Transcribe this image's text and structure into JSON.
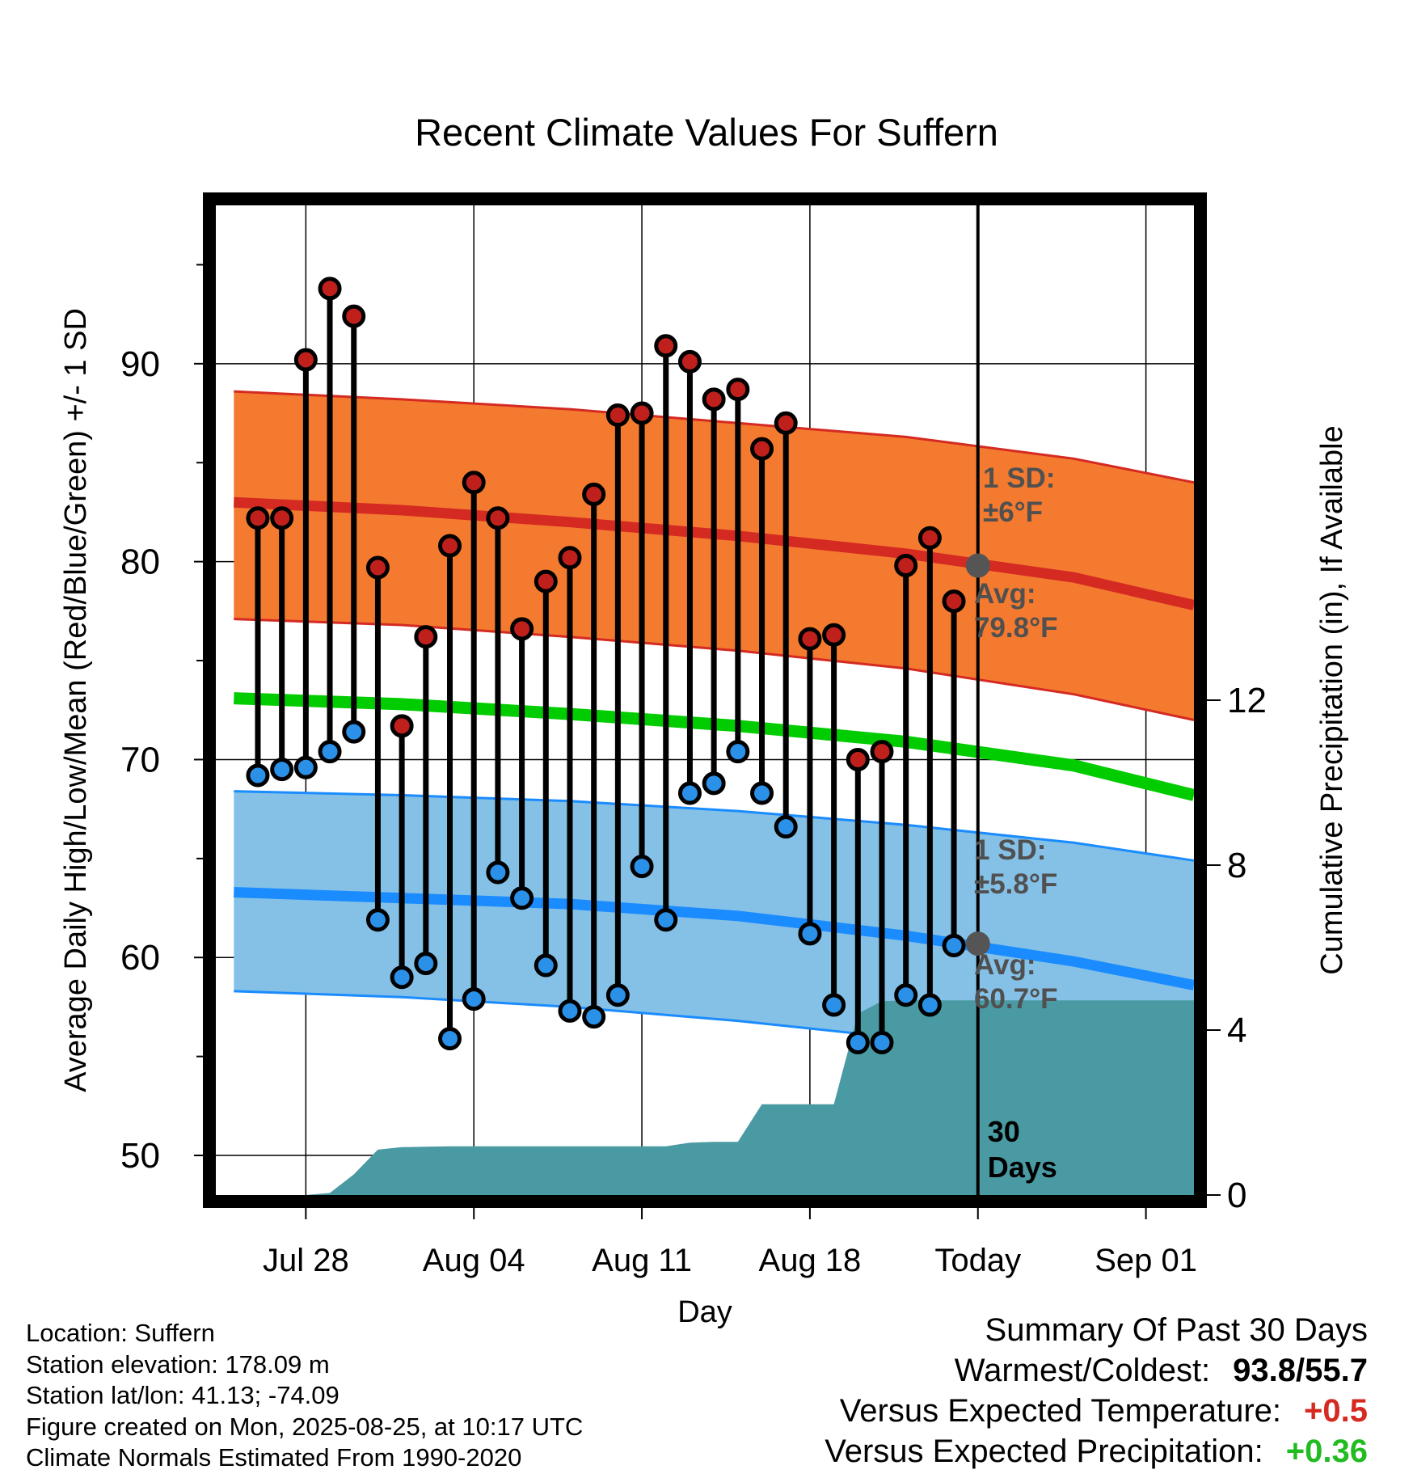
{
  "chart_data": {
    "type": "line",
    "title": "Recent Climate Values For Suffern",
    "xlabel": "Day",
    "ylabel_left": "Average Daily High/Low/Mean (Red/Blue/Green) +/- 1 SD",
    "ylabel_right": "Cumulative Precipitation (in), If Available",
    "x_tick_labels": [
      "Jul 28",
      "Aug 04",
      "Aug 11",
      "Aug 18",
      "Today",
      "Sep 01"
    ],
    "x_tick_dates": [
      "2025-07-28",
      "2025-08-04",
      "2025-08-11",
      "2025-08-18",
      "2025-08-25",
      "2025-09-01"
    ],
    "xlim": [
      "2025-07-24T18:00",
      "2025-09-03T12:00"
    ],
    "ylim_left": [
      48,
      98
    ],
    "y_ticks_left": [
      50,
      60,
      70,
      80,
      90
    ],
    "ylim_right": [
      0,
      24
    ],
    "y_ticks_right": [
      0,
      4,
      8,
      12
    ],
    "grid": true,
    "today_marker": {
      "date": "2025-08-25",
      "label": "30 Days"
    },
    "colors": {
      "high_mean": "#d42a22",
      "high_band": "#f47a30",
      "low_mean": "#1a8cff",
      "low_band": "#85c1e6",
      "overall_mean": "#00cc00",
      "precip": "#4a9aa4",
      "high_dot": "#c0201c",
      "low_dot": "#2a90e8",
      "avg_marker": "#555555",
      "annotation_text": "#505050"
    },
    "annotations": {
      "high_sd": [
        "1 SD:",
        "±6°F"
      ],
      "high_avg": [
        "Avg:",
        "79.8°F"
      ],
      "low_sd": [
        "1 SD:",
        "±5.8°F"
      ],
      "low_avg": [
        "Avg:",
        "60.7°F"
      ]
    },
    "normals": {
      "dates": [
        "2025-07-25",
        "2025-08-01",
        "2025-08-08",
        "2025-08-15",
        "2025-08-22",
        "2025-08-29",
        "2025-09-03"
      ],
      "high_mean": [
        83.0,
        82.6,
        82.0,
        81.3,
        80.4,
        79.2,
        77.8
      ],
      "high_upper": [
        88.6,
        88.2,
        87.7,
        87.0,
        86.3,
        85.2,
        84.0
      ],
      "high_lower": [
        77.1,
        76.8,
        76.2,
        75.5,
        74.6,
        73.3,
        72.0
      ],
      "overall_mean": [
        73.1,
        72.8,
        72.3,
        71.7,
        70.9,
        69.7,
        68.2
      ],
      "low_mean": [
        63.3,
        63.0,
        62.7,
        62.1,
        61.1,
        59.8,
        58.6
      ],
      "low_upper": [
        68.4,
        68.2,
        67.9,
        67.4,
        66.7,
        65.8,
        64.9
      ],
      "low_lower": [
        58.3,
        58.0,
        57.5,
        56.8,
        55.9,
        55.5,
        55.5
      ]
    },
    "series": [
      {
        "name": "High",
        "dates": [
          "2025-07-26",
          "2025-07-27",
          "2025-07-28",
          "2025-07-29",
          "2025-07-30",
          "2025-07-31",
          "2025-08-01",
          "2025-08-02",
          "2025-08-03",
          "2025-08-04",
          "2025-08-05",
          "2025-08-06",
          "2025-08-07",
          "2025-08-08",
          "2025-08-09",
          "2025-08-10",
          "2025-08-11",
          "2025-08-12",
          "2025-08-13",
          "2025-08-14",
          "2025-08-15",
          "2025-08-16",
          "2025-08-17",
          "2025-08-18",
          "2025-08-19",
          "2025-08-20",
          "2025-08-21",
          "2025-08-22",
          "2025-08-23",
          "2025-08-24"
        ],
        "values": [
          82.2,
          82.2,
          90.2,
          93.8,
          92.4,
          79.7,
          71.7,
          76.2,
          80.8,
          84.0,
          82.2,
          76.6,
          79.0,
          80.2,
          83.4,
          87.4,
          87.5,
          90.9,
          90.1,
          88.2,
          88.7,
          85.7,
          87.0,
          76.1,
          76.3,
          70.0,
          70.4,
          79.8,
          81.2,
          78.0
        ]
      },
      {
        "name": "Low",
        "dates": [
          "2025-07-26",
          "2025-07-27",
          "2025-07-28",
          "2025-07-29",
          "2025-07-30",
          "2025-07-31",
          "2025-08-01",
          "2025-08-02",
          "2025-08-03",
          "2025-08-04",
          "2025-08-05",
          "2025-08-06",
          "2025-08-07",
          "2025-08-08",
          "2025-08-09",
          "2025-08-10",
          "2025-08-11",
          "2025-08-12",
          "2025-08-13",
          "2025-08-14",
          "2025-08-15",
          "2025-08-16",
          "2025-08-17",
          "2025-08-18",
          "2025-08-19",
          "2025-08-20",
          "2025-08-21",
          "2025-08-22",
          "2025-08-23",
          "2025-08-24"
        ],
        "values": [
          69.2,
          69.5,
          69.6,
          70.4,
          71.4,
          61.9,
          59.0,
          59.7,
          55.9,
          57.9,
          64.3,
          63.0,
          59.6,
          57.3,
          57.0,
          58.1,
          64.6,
          61.9,
          68.3,
          68.8,
          70.4,
          68.3,
          66.6,
          61.2,
          57.6,
          55.7,
          55.7,
          58.1,
          57.6,
          60.6
        ]
      }
    ],
    "avg_markers": [
      {
        "date": "2025-08-25",
        "value": 79.8
      },
      {
        "date": "2025-08-25",
        "value": 60.7
      }
    ],
    "precip_cumulative": {
      "dates": [
        "2025-07-25",
        "2025-07-26",
        "2025-07-27",
        "2025-07-28",
        "2025-07-29",
        "2025-07-30",
        "2025-07-31",
        "2025-08-01",
        "2025-08-02",
        "2025-08-03",
        "2025-08-04",
        "2025-08-05",
        "2025-08-06",
        "2025-08-07",
        "2025-08-08",
        "2025-08-09",
        "2025-08-10",
        "2025-08-11",
        "2025-08-12",
        "2025-08-13",
        "2025-08-14",
        "2025-08-15",
        "2025-08-16",
        "2025-08-17",
        "2025-08-18",
        "2025-08-19",
        "2025-08-20",
        "2025-08-21",
        "2025-08-22",
        "2025-08-23",
        "2025-08-24",
        "2025-08-25",
        "2025-09-03"
      ],
      "values": [
        0.0,
        0.0,
        0.0,
        0.0,
        0.05,
        0.5,
        1.1,
        1.16,
        1.17,
        1.18,
        1.18,
        1.18,
        1.18,
        1.18,
        1.18,
        1.18,
        1.18,
        1.18,
        1.18,
        1.27,
        1.29,
        1.29,
        2.2,
        2.2,
        2.2,
        2.2,
        4.4,
        4.7,
        4.72,
        4.72,
        4.72,
        4.72,
        4.72
      ]
    }
  },
  "footer": {
    "location": "Location: Suffern",
    "elevation": "Station elevation: 178.09 m",
    "latlon": "Station lat/lon: 41.13; -74.09",
    "created": "Figure created on Mon, 2025-08-25, at 10:17 UTC",
    "normals": "Climate Normals Estimated From 1990-2020"
  },
  "summary": {
    "heading": "Summary Of Past 30 Days",
    "warmest_coldest_label": "Warmest/Coldest:",
    "warmest_coldest_value": "93.8/55.7",
    "temp_label": "Versus Expected Temperature:",
    "temp_value": "+0.5",
    "temp_color": "#d42a22",
    "precip_label": "Versus Expected Precipitation:",
    "precip_value": "+0.36",
    "precip_color": "#22bb22"
  }
}
